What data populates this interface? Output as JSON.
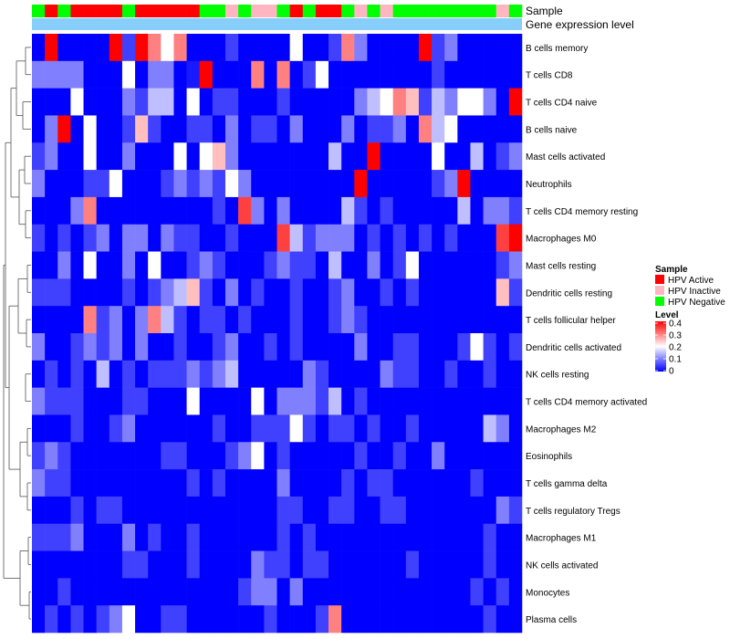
{
  "colors": {
    "hpv_active": "#ff0000",
    "hpv_inactive": "#ffb6c1",
    "hpv_negative": "#00ff00",
    "expression_bar": "#87cefa",
    "low": "#0000ff",
    "mid": "#ffffff",
    "high": "#ff0000"
  },
  "chart_data": {
    "type": "heatmap",
    "annotation_labels": [
      "Sample",
      "Gene expression level"
    ],
    "rows": [
      "B cells memory",
      "T cells CD8",
      "T cells CD4 naive",
      "B cells naive",
      "Mast cells activated",
      "Neutrophils",
      "T cells CD4 memory resting",
      "Macrophages M0",
      "Mast cells resting",
      "Dendritic cells resting",
      "T cells follicular helper",
      "Dendritic cells activated",
      "NK cells resting",
      "T cells CD4 memory activated",
      "Macrophages M2",
      "Eosinophils",
      "T cells gamma delta",
      "T cells regulatory  Tregs",
      "Macrophages M1",
      "NK cells activated",
      "Monocytes",
      "Plasma cells"
    ],
    "sample_groups": [
      "N",
      "A",
      "N",
      "A",
      "A",
      "A",
      "A",
      "N",
      "A",
      "A",
      "A",
      "A",
      "A",
      "N",
      "N",
      "I",
      "N",
      "I",
      "I",
      "N",
      "A",
      "N",
      "A",
      "A",
      "N",
      "I",
      "N",
      "I",
      "N",
      "N",
      "N",
      "N",
      "N",
      "N",
      "N",
      "N",
      "I",
      "N"
    ],
    "values": [
      [
        0,
        0.4,
        0,
        0,
        0,
        0,
        0.4,
        0.05,
        0.4,
        0.3,
        0.2,
        0.3,
        0,
        0,
        0,
        0.05,
        0,
        0,
        0,
        0,
        0.2,
        0,
        0,
        0.05,
        0.3,
        0.1,
        0,
        0,
        0,
        0,
        0.4,
        0.05,
        0.1,
        0,
        0,
        0,
        0,
        0
      ],
      [
        0.1,
        0.1,
        0.1,
        0.1,
        0,
        0,
        0,
        0.2,
        0,
        0.1,
        0.1,
        0,
        0.02,
        0.4,
        0,
        0,
        0,
        0.3,
        0,
        0.3,
        0,
        0.05,
        0.2,
        0,
        0,
        0,
        0,
        0,
        0,
        0,
        0,
        0.05,
        0,
        0,
        0,
        0,
        0,
        0
      ],
      [
        0,
        0,
        0,
        0.2,
        0,
        0,
        0,
        0.1,
        0.05,
        0.15,
        0.15,
        0,
        0.2,
        0,
        0.05,
        0.05,
        0,
        0,
        0,
        0.05,
        0,
        0,
        0,
        0,
        0,
        0.1,
        0.15,
        0.2,
        0.3,
        0.25,
        0.05,
        0.15,
        0.1,
        0.2,
        0.2,
        0.1,
        0,
        0.4
      ],
      [
        0,
        0.1,
        0.4,
        0,
        0.2,
        0,
        0,
        0.05,
        0.25,
        0.05,
        0,
        0,
        0.05,
        0.05,
        0,
        0.1,
        0,
        0.05,
        0.05,
        0,
        0.1,
        0,
        0,
        0,
        0.1,
        0,
        0.05,
        0.05,
        0.1,
        0,
        0.3,
        0.15,
        0.2,
        0,
        0,
        0,
        0,
        0
      ],
      [
        0.05,
        0.1,
        0,
        0,
        0.2,
        0,
        0,
        0.1,
        0,
        0,
        0,
        0.2,
        0,
        0.2,
        0.25,
        0.1,
        0,
        0,
        0,
        0,
        0,
        0,
        0,
        0.15,
        0,
        0,
        0.4,
        0,
        0,
        0,
        0,
        0.2,
        0,
        0,
        0.15,
        0,
        0.05,
        0.1
      ],
      [
        0.1,
        0,
        0,
        0,
        0.05,
        0.05,
        0.2,
        0,
        0,
        0,
        0.05,
        0.1,
        0.05,
        0.1,
        0.05,
        0.2,
        0.1,
        0,
        0,
        0,
        0,
        0,
        0,
        0,
        0,
        0.4,
        0,
        0,
        0,
        0,
        0,
        0.05,
        0.1,
        0.4,
        0,
        0,
        0,
        0
      ],
      [
        0,
        0,
        0,
        0.1,
        0.3,
        0,
        0,
        0,
        0,
        0,
        0,
        0,
        0,
        0,
        0.05,
        0,
        0.35,
        0.1,
        0,
        0.1,
        0,
        0,
        0,
        0,
        0.15,
        0.05,
        0,
        0.05,
        0,
        0,
        0,
        0,
        0,
        0.15,
        0,
        0.1,
        0.1,
        0.05
      ],
      [
        0.05,
        0,
        0.05,
        0,
        0.05,
        0.1,
        0,
        0.1,
        0.1,
        0,
        0.1,
        0.05,
        0.05,
        0,
        0,
        0.05,
        0,
        0,
        0,
        0.35,
        0.15,
        0.05,
        0.1,
        0.1,
        0.1,
        0,
        0.05,
        0,
        0.05,
        0,
        0.05,
        0,
        0.05,
        0,
        0,
        0,
        0.35,
        0.4
      ],
      [
        0,
        0,
        0.1,
        0,
        0.2,
        0,
        0,
        0.1,
        0,
        0.2,
        0,
        0,
        0.05,
        0.1,
        0.05,
        0,
        0,
        0,
        0.05,
        0.1,
        0.05,
        0.05,
        0,
        0.15,
        0,
        0,
        0.1,
        0,
        0.05,
        0.2,
        0,
        0,
        0,
        0,
        0,
        0,
        0.05,
        0.1
      ],
      [
        0.05,
        0.05,
        0.05,
        0,
        0,
        0,
        0,
        0.05,
        0,
        0.05,
        0.1,
        0.15,
        0.25,
        0.05,
        0,
        0.1,
        0,
        0.05,
        0,
        0,
        0.05,
        0,
        0,
        0.05,
        0.1,
        0,
        0,
        0.05,
        0,
        0.05,
        0,
        0,
        0,
        0,
        0,
        0,
        0.25,
        0.05
      ],
      [
        0,
        0,
        0,
        0,
        0.3,
        0.05,
        0.1,
        0,
        0.1,
        0.3,
        0.15,
        0.05,
        0,
        0.05,
        0.05,
        0,
        0.05,
        0,
        0,
        0,
        0.05,
        0,
        0,
        0.05,
        0.1,
        0.05,
        0,
        0,
        0,
        0,
        0,
        0,
        0,
        0,
        0,
        0,
        0,
        0
      ],
      [
        0.1,
        0,
        0,
        0.05,
        0.1,
        0.05,
        0.1,
        0,
        0.1,
        0,
        0,
        0.05,
        0,
        0,
        0.05,
        0.1,
        0,
        0,
        0.05,
        0,
        0.05,
        0,
        0,
        0,
        0,
        0.1,
        0,
        0,
        0.05,
        0.05,
        0,
        0,
        0,
        0.05,
        0.2,
        0.05,
        0,
        0.05
      ],
      [
        0,
        0.05,
        0,
        0.05,
        0,
        0.15,
        0,
        0.05,
        0,
        0.05,
        0.05,
        0.05,
        0.1,
        0.05,
        0.1,
        0.15,
        0,
        0,
        0,
        0,
        0,
        0.1,
        0.05,
        0,
        0,
        0,
        0,
        0.1,
        0.05,
        0.05,
        0,
        0,
        0.05,
        0,
        0,
        0.05,
        0,
        0
      ],
      [
        0.1,
        0.05,
        0.05,
        0.05,
        0,
        0,
        0,
        0.05,
        0.05,
        0,
        0,
        0,
        0.2,
        0,
        0,
        0,
        0,
        0.2,
        0,
        0.1,
        0.1,
        0.1,
        0.05,
        0.15,
        0,
        0.05,
        0,
        0,
        0,
        0,
        0,
        0,
        0,
        0,
        0,
        0,
        0,
        0
      ],
      [
        0,
        0,
        0,
        0.05,
        0,
        0,
        0.05,
        0.1,
        0,
        0,
        0,
        0,
        0,
        0,
        0.05,
        0,
        0,
        0.05,
        0.05,
        0.05,
        0.2,
        0.05,
        0,
        0.05,
        0.05,
        0,
        0.05,
        0,
        0,
        0.05,
        0,
        0,
        0,
        0,
        0,
        0.15,
        0.1,
        0
      ],
      [
        0.05,
        0.1,
        0.05,
        0,
        0,
        0,
        0,
        0,
        0,
        0,
        0.05,
        0.05,
        0,
        0,
        0,
        0.05,
        0.1,
        0.2,
        0,
        0.05,
        0,
        0,
        0,
        0,
        0,
        0.05,
        0,
        0,
        0.05,
        0,
        0,
        0.1,
        0,
        0,
        0,
        0,
        0,
        0
      ],
      [
        0.1,
        0.05,
        0.05,
        0,
        0,
        0,
        0,
        0,
        0,
        0,
        0,
        0,
        0.05,
        0,
        0.05,
        0,
        0,
        0,
        0,
        0.1,
        0,
        0,
        0,
        0,
        0.05,
        0,
        0.05,
        0.05,
        0,
        0,
        0,
        0,
        0,
        0,
        0.05,
        0,
        0,
        0
      ],
      [
        0,
        0,
        0,
        0.05,
        0,
        0.05,
        0.05,
        0,
        0,
        0,
        0,
        0,
        0,
        0,
        0,
        0,
        0,
        0,
        0,
        0.05,
        0.05,
        0,
        0,
        0.05,
        0.05,
        0,
        0,
        0.05,
        0.05,
        0,
        0,
        0,
        0,
        0,
        0,
        0,
        0.1,
        0.05
      ],
      [
        0.05,
        0.05,
        0.05,
        0.1,
        0,
        0,
        0,
        0.1,
        0,
        0.05,
        0,
        0,
        0.05,
        0,
        0,
        0,
        0,
        0,
        0,
        0.05,
        0,
        0.05,
        0,
        0,
        0,
        0,
        0,
        0,
        0,
        0,
        0,
        0,
        0,
        0,
        0,
        0.05,
        0,
        0
      ],
      [
        0,
        0,
        0,
        0,
        0,
        0,
        0,
        0.05,
        0.05,
        0,
        0,
        0,
        0.05,
        0,
        0,
        0,
        0,
        0.1,
        0.05,
        0.05,
        0,
        0.05,
        0.05,
        0,
        0,
        0,
        0,
        0,
        0,
        0.05,
        0,
        0,
        0,
        0,
        0,
        0.05,
        0,
        0
      ],
      [
        0,
        0,
        0.05,
        0,
        0,
        0,
        0,
        0,
        0,
        0,
        0,
        0,
        0,
        0,
        0,
        0,
        0.05,
        0.1,
        0.1,
        0,
        0.1,
        0,
        0,
        0,
        0,
        0,
        0,
        0,
        0,
        0,
        0,
        0,
        0,
        0,
        0.05,
        0,
        0.05,
        0
      ],
      [
        0,
        0.05,
        0,
        0.05,
        0,
        0.05,
        0.1,
        0.2,
        0,
        0,
        0.05,
        0.05,
        0,
        0,
        0,
        0,
        0,
        0,
        0.05,
        0,
        0,
        0,
        0.05,
        0.3,
        0,
        0,
        0,
        0,
        0,
        0,
        0,
        0,
        0,
        0,
        0,
        0.05,
        0,
        0
      ]
    ],
    "legend": {
      "sample_title": "Sample",
      "sample_entries": [
        "HPV Active",
        "HPV Inactive",
        "HPV Negative"
      ],
      "level_title": "Level",
      "level_ticks": [
        "0.4",
        "0.3",
        "0.2",
        "0.1",
        "0"
      ]
    },
    "scale": {
      "min": 0,
      "max": 0.4
    }
  }
}
